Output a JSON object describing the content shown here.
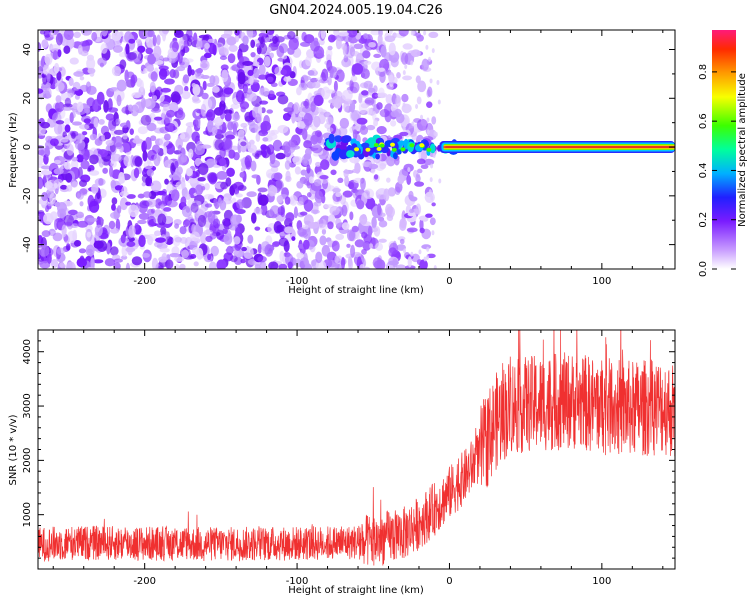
{
  "title": "GN04.2024.005.19.04.C26",
  "top_panel": {
    "xlabel": "Height of straight line (km)",
    "ylabel": "Frequency (Hz)",
    "colorbar_label": "Normalized spectral amplitude"
  },
  "bottom_panel": {
    "xlabel": "Height of straight line (km)",
    "ylabel": "SNR (10 * v/v)"
  },
  "colors": {
    "snr_line": "#f03030",
    "noise_purple": "#7a1cff",
    "carrier_red": "#e82020"
  },
  "chart_data": [
    {
      "type": "heatmap",
      "title": "GN04.2024.005.19.04.C26",
      "xlabel": "Height of straight line (km)",
      "ylabel": "Frequency (Hz)",
      "xlim": [
        -270,
        148
      ],
      "ylim": [
        -50,
        48
      ],
      "x_ticks": [
        -200,
        -100,
        0,
        100
      ],
      "y_ticks": [
        -40,
        -20,
        0,
        20,
        40
      ],
      "colorbar": {
        "label": "Normalized spectral amplitude",
        "range": [
          0,
          0.97
        ],
        "ticks": [
          0.0,
          0.2,
          0.4,
          0.6,
          0.8
        ]
      },
      "description_values": {
        "carrier_frequency_hz": 0,
        "carrier_start_height_km": -80,
        "carrier_strong_from_height_km": 0,
        "noise_region_end_height_km": -30
      }
    },
    {
      "type": "line",
      "xlabel": "Height of straight line (km)",
      "ylabel": "SNR (10 * v/v)",
      "xlim": [
        -270,
        148
      ],
      "ylim": [
        0,
        4400
      ],
      "x_ticks": [
        -200,
        -100,
        0,
        100
      ],
      "y_ticks": [
        1000,
        2000,
        3000,
        4000
      ],
      "series": [
        {
          "x": [
            -270,
            -250,
            -200,
            -150,
            -100,
            -70,
            -50,
            -30,
            -20,
            -10,
            0,
            10,
            20,
            30,
            40,
            60,
            80,
            100,
            120,
            140,
            148
          ],
          "values": [
            450,
            480,
            470,
            460,
            470,
            480,
            520,
            650,
            850,
            1100,
            1400,
            1700,
            2100,
            2700,
            3000,
            3050,
            3100,
            3000,
            2950,
            3000,
            2900
          ]
        }
      ]
    }
  ]
}
